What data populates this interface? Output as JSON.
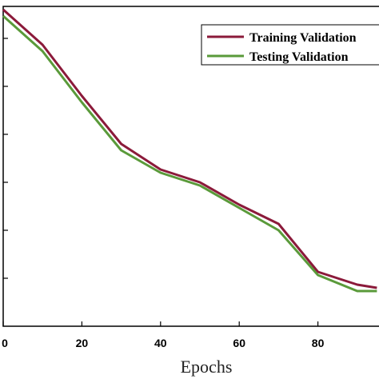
{
  "chart_data": {
    "type": "line",
    "xlabel": "Epochs",
    "ylabel": "",
    "xlim": [
      0,
      100
    ],
    "ylim": [
      0,
      1
    ],
    "xticks": [
      0,
      20,
      40,
      60,
      80
    ],
    "xtick_labels": [
      "0",
      "20",
      "40",
      "60",
      "80"
    ],
    "yticks": [
      0.15,
      0.3,
      0.45,
      0.6,
      0.75,
      0.9
    ],
    "grid": false,
    "legend_position": "top-right",
    "series": [
      {
        "name": "Training  Validation",
        "color": "#8b1a3a",
        "x": [
          0,
          10,
          20,
          30,
          40,
          50,
          60,
          70,
          80,
          90,
          95
        ],
        "y": [
          0.99,
          0.88,
          0.72,
          0.57,
          0.49,
          0.45,
          0.38,
          0.32,
          0.17,
          0.13,
          0.12
        ]
      },
      {
        "name": "Testing Validation",
        "color": "#5a9a3a",
        "x": [
          0,
          10,
          20,
          30,
          40,
          50,
          60,
          70,
          80,
          90,
          95
        ],
        "y": [
          0.97,
          0.86,
          0.7,
          0.55,
          0.48,
          0.44,
          0.37,
          0.3,
          0.16,
          0.11,
          0.11
        ]
      }
    ]
  }
}
